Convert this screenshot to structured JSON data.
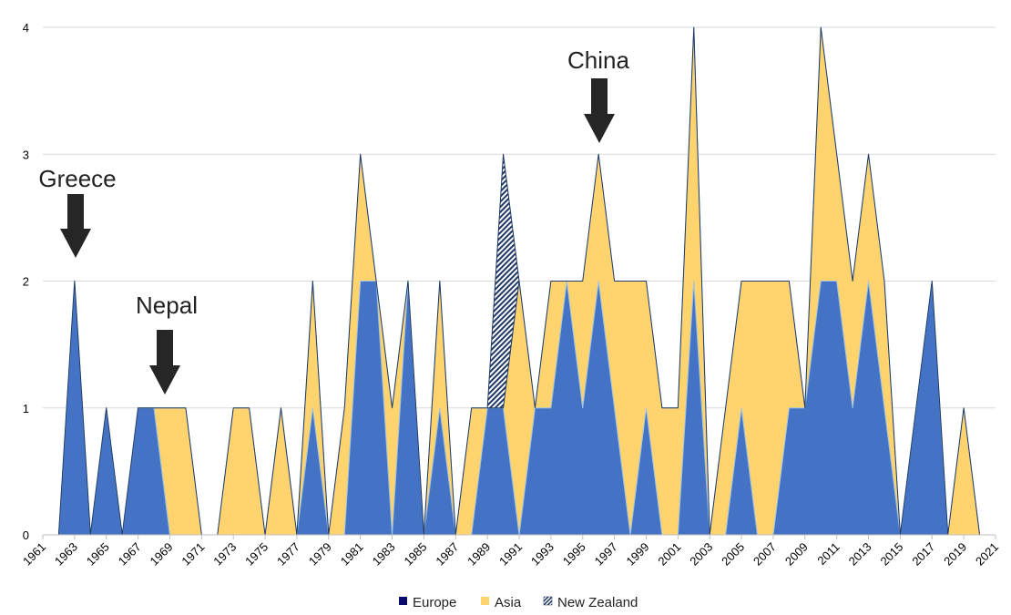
{
  "chart_data": {
    "type": "area",
    "stacking": "stacked",
    "x": [
      1962,
      1963,
      1964,
      1965,
      1966,
      1967,
      1968,
      1969,
      1970,
      1971,
      1972,
      1973,
      1974,
      1975,
      1976,
      1977,
      1978,
      1979,
      1980,
      1981,
      1982,
      1983,
      1984,
      1985,
      1986,
      1987,
      1988,
      1989,
      1990,
      1991,
      1992,
      1993,
      1994,
      1995,
      1996,
      1997,
      1998,
      1999,
      2000,
      2001,
      2002,
      2003,
      2004,
      2005,
      2006,
      2007,
      2008,
      2009,
      2010,
      2011,
      2012,
      2013,
      2014,
      2015,
      2016,
      2017,
      2018,
      2019,
      2020
    ],
    "x_ticks": [
      "1961",
      "1963",
      "1965",
      "1967",
      "1969",
      "1971",
      "1973",
      "1975",
      "1977",
      "1979",
      "1981",
      "1983",
      "1985",
      "1987",
      "1989",
      "1991",
      "1993",
      "1995",
      "1997",
      "1999",
      "2001",
      "2003",
      "2005",
      "2007",
      "2009",
      "2011",
      "2013",
      "2015",
      "2017",
      "2019",
      "2021"
    ],
    "x_tick_values": [
      1961,
      1963,
      1965,
      1967,
      1969,
      1971,
      1973,
      1975,
      1977,
      1979,
      1981,
      1983,
      1985,
      1987,
      1989,
      1991,
      1993,
      1995,
      1997,
      1999,
      2001,
      2003,
      2005,
      2007,
      2009,
      2011,
      2013,
      2015,
      2017,
      2019,
      2021
    ],
    "xlim": [
      1961,
      2021
    ],
    "y_ticks": [
      "0",
      "1",
      "2",
      "3",
      "4"
    ],
    "ylim": [
      0,
      4
    ],
    "series": [
      {
        "name": "Europe",
        "color": "#4472C4",
        "values": [
          0,
          2,
          0,
          1,
          0,
          1,
          1,
          0,
          0,
          0,
          0,
          0,
          0,
          0,
          0,
          0,
          1,
          0,
          0,
          2,
          2,
          0,
          2,
          0,
          1,
          0,
          0,
          1,
          1,
          0,
          1,
          1,
          2,
          1,
          2,
          1,
          0,
          1,
          0,
          0,
          2,
          0,
          0,
          1,
          0,
          0,
          1,
          1,
          2,
          2,
          1,
          2,
          1,
          0,
          1,
          2,
          0,
          0,
          0
        ]
      },
      {
        "name": "Asia",
        "color": "#FFD36E",
        "values": [
          0,
          0,
          0,
          0,
          0,
          0,
          0,
          1,
          1,
          0,
          0,
          1,
          1,
          0,
          1,
          0,
          1,
          0,
          1,
          1,
          0,
          1,
          0,
          0,
          1,
          0,
          1,
          0,
          0,
          2,
          0,
          1,
          0,
          1,
          1,
          1,
          2,
          1,
          1,
          1,
          2,
          0,
          1,
          1,
          2,
          2,
          1,
          0,
          2,
          1,
          1,
          1,
          1,
          0,
          0,
          0,
          0,
          1,
          0
        ]
      },
      {
        "name": "New Zealand",
        "color": "#1F3864",
        "values": [
          0,
          0,
          0,
          0,
          0,
          0,
          0,
          0,
          0,
          0,
          0,
          0,
          0,
          0,
          0,
          0,
          0,
          0,
          0,
          0,
          0,
          0,
          0,
          0,
          0,
          0,
          0,
          0,
          2,
          0,
          0,
          0,
          0,
          0,
          0,
          0,
          0,
          0,
          0,
          0,
          0,
          0,
          0,
          0,
          0,
          0,
          0,
          0,
          0,
          0,
          0,
          0,
          0,
          0,
          0,
          0,
          0,
          0,
          0
        ]
      }
    ],
    "annotations": [
      {
        "text": "Greece",
        "x": 1963,
        "y": 2
      },
      {
        "text": "Nepal",
        "x": 1969,
        "y": 1
      },
      {
        "text": "China",
        "x": 1996,
        "y": 3
      }
    ],
    "grid": true,
    "legend": "bottom-center"
  },
  "legend": {
    "items": [
      {
        "label": "Europe",
        "color": "#0b0b6e"
      },
      {
        "label": "Asia",
        "color": "#FFD36E"
      },
      {
        "label": "New Zealand",
        "color": "#1F3864"
      }
    ]
  }
}
